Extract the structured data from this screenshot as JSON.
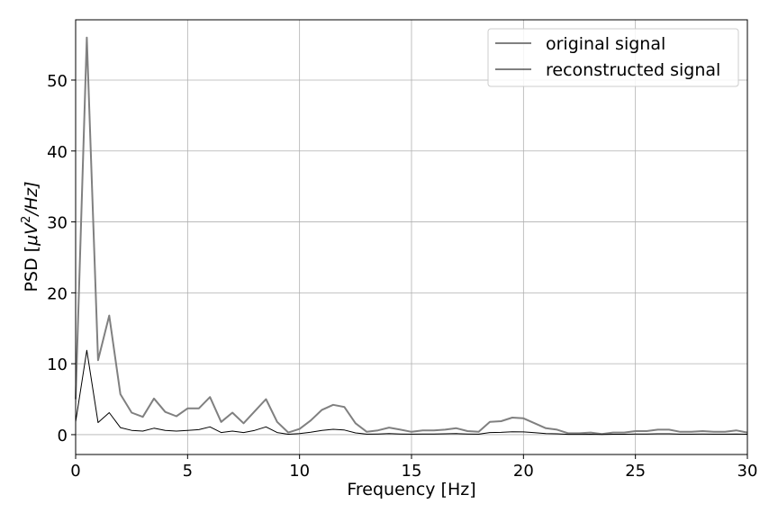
{
  "chart_data": {
    "type": "line",
    "xlabel_main": "Frequency [Hz]",
    "ylabel_parts": {
      "prefix": "PSD [",
      "mu": "μ",
      "v": "V",
      "exp": "2",
      "suffix": "/Hz]"
    },
    "xlim": [
      0,
      30
    ],
    "ylim": [
      -2.8,
      58.5
    ],
    "x_ticks": [
      0,
      5,
      10,
      15,
      20,
      25,
      30
    ],
    "y_ticks": [
      0,
      10,
      20,
      30,
      40,
      50
    ],
    "grid": true,
    "legend_position": "top-right",
    "x": [
      0,
      0.5,
      1,
      1.5,
      2,
      2.5,
      3,
      3.5,
      4,
      4.5,
      5,
      5.5,
      6,
      6.5,
      7,
      7.5,
      8,
      8.5,
      9,
      9.5,
      10,
      10.5,
      11,
      11.5,
      12,
      12.5,
      13,
      13.5,
      14,
      14.5,
      15,
      15.5,
      16,
      16.5,
      17,
      17.5,
      18,
      18.5,
      19,
      19.5,
      20,
      20.5,
      21,
      21.5,
      22,
      22.5,
      23,
      23.5,
      24,
      24.5,
      25,
      25.5,
      26,
      26.5,
      27,
      27.5,
      28,
      28.5,
      29,
      29.5,
      30
    ],
    "series": [
      {
        "name": "original signal",
        "color": "#808080",
        "values": [
          5,
          56,
          10.5,
          16.8,
          5.7,
          3.1,
          2.5,
          5.1,
          3.2,
          2.6,
          3.7,
          3.7,
          5.3,
          1.8,
          3.1,
          1.6,
          3.3,
          5.0,
          1.8,
          0.3,
          0.8,
          2.0,
          3.5,
          4.2,
          3.9,
          1.6,
          0.4,
          0.6,
          1.0,
          0.7,
          0.4,
          0.6,
          0.6,
          0.7,
          0.9,
          0.5,
          0.4,
          1.8,
          1.9,
          2.4,
          2.3,
          1.6,
          0.9,
          0.7,
          0.2,
          0.2,
          0.3,
          0.1,
          0.3,
          0.3,
          0.5,
          0.5,
          0.7,
          0.7,
          0.4,
          0.4,
          0.5,
          0.4,
          0.4,
          0.6,
          0.3
        ]
      },
      {
        "name": "reconstructed signal",
        "color": "#000000",
        "values": [
          1.8,
          11.9,
          1.7,
          3.1,
          1.0,
          0.6,
          0.5,
          0.9,
          0.6,
          0.5,
          0.6,
          0.7,
          1.1,
          0.3,
          0.5,
          0.3,
          0.6,
          1.1,
          0.3,
          0.05,
          0.15,
          0.35,
          0.6,
          0.75,
          0.65,
          0.25,
          0.07,
          0.1,
          0.15,
          0.1,
          0.07,
          0.1,
          0.1,
          0.12,
          0.15,
          0.09,
          0.07,
          0.3,
          0.32,
          0.4,
          0.38,
          0.27,
          0.15,
          0.12,
          0.04,
          0.04,
          0.05,
          0.02,
          0.05,
          0.05,
          0.08,
          0.08,
          0.12,
          0.12,
          0.07,
          0.07,
          0.08,
          0.07,
          0.07,
          0.1,
          0.05
        ]
      }
    ]
  }
}
